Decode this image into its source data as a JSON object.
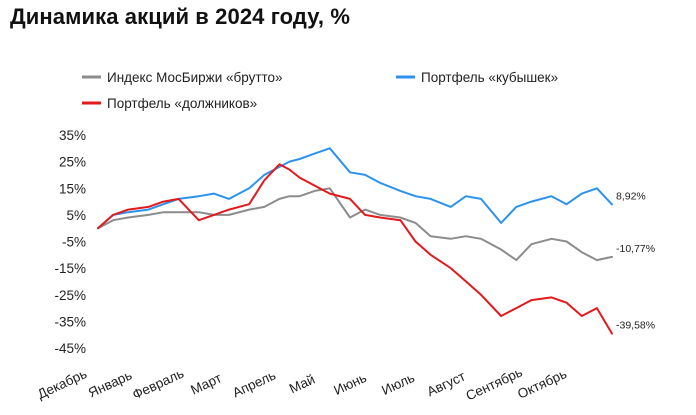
{
  "title": "Динамика акций в 2024 году, %",
  "legend": {
    "items": [
      {
        "label": "Индекс МосБиржи «брутто»",
        "color": "#8c8c8c"
      },
      {
        "label": "Портфель «кубышек»",
        "color": "#2b93ee"
      },
      {
        "label": "Портфель «должников»",
        "color": "#e3191c"
      }
    ]
  },
  "chart_data": {
    "type": "line",
    "title": "Динамика акций в 2024 году, %",
    "ylim": [
      -45,
      35
    ],
    "yticks": [
      "35%",
      "25%",
      "15%",
      "5%",
      "-5%",
      "-15%",
      "-25%",
      "-35%",
      "-45%"
    ],
    "xticks": [
      "Декабрь",
      "Январь",
      "Февраль",
      "Март",
      "Апрель",
      "Май",
      "Июнь",
      "Июль",
      "Август",
      "Сентябрь",
      "Октябрь"
    ],
    "grid": false,
    "legend_position": "top",
    "series": [
      {
        "name": "Индекс МосБиржи «брутто»",
        "color": "#8c8c8c",
        "end_label": "-10,77%",
        "x": [
          0,
          0.3,
          0.6,
          1,
          1.3,
          1.6,
          2,
          2.3,
          2.6,
          3,
          3.3,
          3.6,
          3.8,
          4,
          4.3,
          4.6,
          5,
          5.3,
          5.6,
          6,
          6.3,
          6.6,
          7,
          7.3,
          7.6,
          8,
          8.3,
          8.6,
          9,
          9.3,
          9.6,
          9.9,
          10.2
        ],
        "values": [
          0,
          3,
          4,
          5,
          6,
          6,
          6,
          5,
          5,
          7,
          8,
          11,
          12,
          12,
          14,
          15,
          4,
          7,
          5,
          4,
          2,
          -3,
          -4,
          -3,
          -4,
          -8,
          -12,
          -6,
          -4,
          -5,
          -9,
          -12,
          -10.77
        ]
      },
      {
        "name": "Портфель «кубышек»",
        "color": "#2b93ee",
        "end_label": "8,92%",
        "x": [
          0,
          0.3,
          0.6,
          1,
          1.3,
          1.6,
          2,
          2.3,
          2.6,
          3,
          3.3,
          3.6,
          3.8,
          4,
          4.3,
          4.6,
          5,
          5.3,
          5.6,
          6,
          6.3,
          6.6,
          7,
          7.3,
          7.6,
          8,
          8.3,
          8.6,
          9,
          9.3,
          9.6,
          9.9,
          10.2
        ],
        "values": [
          0,
          5,
          6,
          7,
          9,
          11,
          12,
          13,
          11,
          15,
          20,
          23,
          25,
          26,
          28,
          30,
          21,
          20,
          17,
          14,
          12,
          11,
          8,
          12,
          11,
          2,
          8,
          10,
          12,
          9,
          13,
          15,
          8.92
        ]
      },
      {
        "name": "Портфель «должников»",
        "color": "#e3191c",
        "end_label": "-39,58%",
        "x": [
          0,
          0.3,
          0.6,
          1,
          1.3,
          1.6,
          2,
          2.3,
          2.6,
          3,
          3.3,
          3.6,
          3.8,
          4,
          4.3,
          4.6,
          5,
          5.3,
          5.6,
          6,
          6.3,
          6.6,
          7,
          7.3,
          7.6,
          8,
          8.3,
          8.6,
          9,
          9.3,
          9.6,
          9.9,
          10.2
        ],
        "values": [
          0,
          5,
          7,
          8,
          10,
          11,
          3,
          5,
          7,
          9,
          18,
          24,
          22,
          19,
          16,
          13,
          11,
          5,
          4,
          3,
          -5,
          -10,
          -15,
          -20,
          -25,
          -33,
          -30,
          -27,
          -26,
          -28,
          -33,
          -30,
          -39.58
        ]
      }
    ]
  }
}
